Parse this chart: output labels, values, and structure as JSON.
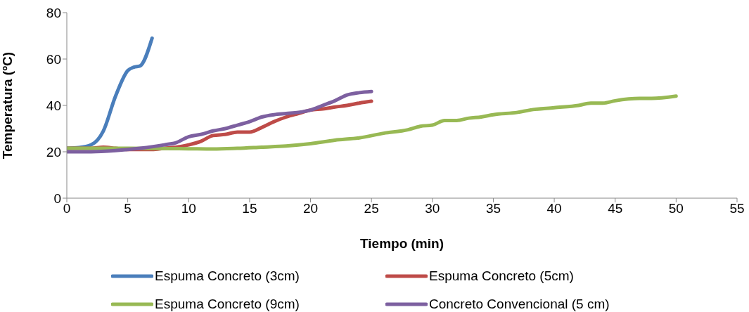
{
  "chart_data": {
    "type": "line",
    "xlabel": "Tiempo (min)",
    "ylabel": "Temperatura (ºC)",
    "xlim": [
      0,
      55
    ],
    "xticks": [
      0,
      5,
      10,
      15,
      20,
      25,
      30,
      35,
      40,
      45,
      50,
      55
    ],
    "ylim": [
      0,
      80
    ],
    "yticks": [
      0,
      20,
      40,
      60,
      80
    ],
    "grid": false,
    "legend": "bottom",
    "marker": "none",
    "line_style": "solid",
    "series": [
      {
        "name": "Espuma Concreto (3cm)",
        "color": "#4a7ebb",
        "x": [
          0,
          1,
          2,
          3,
          4,
          5,
          5.5,
          6,
          7
        ],
        "values": [
          21.5,
          21.8,
          23,
          29,
          44,
          55,
          56.5,
          57,
          69
        ]
      },
      {
        "name": "Espuma Concreto (5cm)",
        "color": "#be4b48",
        "x": [
          0,
          1,
          2,
          3,
          4,
          5,
          6,
          7,
          8,
          9,
          10,
          11,
          12,
          13,
          14,
          15,
          16,
          17,
          18,
          19,
          20,
          21,
          22,
          23,
          24,
          25
        ],
        "values": [
          21.5,
          21.5,
          21.5,
          22,
          21.5,
          21,
          21,
          21,
          21.5,
          22,
          23,
          24.5,
          27,
          27.5,
          28.5,
          28.5,
          30.5,
          33,
          35,
          36.5,
          38,
          38.5,
          39.3,
          40,
          41,
          41.8
        ]
      },
      {
        "name": "Espuma Concreto (9cm)",
        "color": "#98b954",
        "x": [
          0,
          5,
          10,
          12,
          14,
          16,
          18,
          20,
          22,
          24,
          26,
          28,
          29,
          30,
          31,
          32,
          33,
          34,
          35,
          37,
          38,
          40,
          42,
          43,
          44,
          45,
          47,
          48,
          50
        ],
        "values": [
          21.5,
          21.5,
          21.3,
          21.2,
          21.5,
          22,
          22.5,
          23.5,
          25,
          26,
          28,
          29.5,
          31,
          31.5,
          33.5,
          33.5,
          34.5,
          35,
          36,
          37,
          38,
          39,
          40,
          41,
          41,
          42,
          43,
          43,
          44
        ]
      },
      {
        "name": "Concreto Convencional (5 cm)",
        "color": "#7d60a0",
        "x": [
          0,
          2,
          4,
          6,
          8,
          9,
          10,
          11,
          12,
          13,
          14,
          15,
          16,
          17,
          18,
          19,
          20,
          21,
          22,
          23,
          24,
          25
        ],
        "values": [
          20,
          20,
          20.5,
          21.5,
          23,
          24,
          26.5,
          27.5,
          29,
          30,
          31.5,
          33,
          35,
          36,
          36.5,
          37,
          38,
          40,
          42,
          44.5,
          45.5,
          46
        ]
      }
    ]
  }
}
